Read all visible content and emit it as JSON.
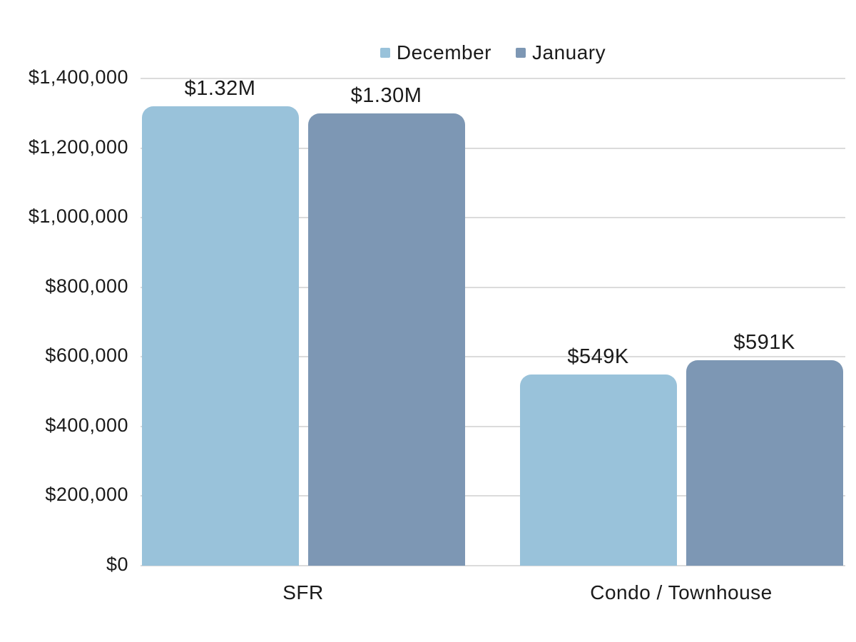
{
  "chart_data": {
    "type": "bar",
    "title": "",
    "xlabel": "",
    "ylabel": "",
    "categories": [
      "SFR",
      "Condo / Townhouse"
    ],
    "series": [
      {
        "name": "December",
        "color": "#99c2da",
        "values": [
          1320000,
          549000
        ],
        "data_labels": [
          "$1.32M",
          "$549K"
        ]
      },
      {
        "name": "January",
        "color": "#7d97b4",
        "values": [
          1300000,
          591000
        ],
        "data_labels": [
          "$1.30M",
          "$591K"
        ]
      }
    ],
    "ylim": [
      0,
      1400000
    ],
    "yticks": [
      "$0",
      "$200,000",
      "$400,000",
      "$600,000",
      "$800,000",
      "$1,000,000",
      "$1,200,000",
      "$1,400,000"
    ],
    "grid": true,
    "legend_position": "top-center",
    "colors": {
      "grid": "#dbdbdb",
      "text": "#1a1a1a",
      "background": "#ffffff"
    }
  }
}
